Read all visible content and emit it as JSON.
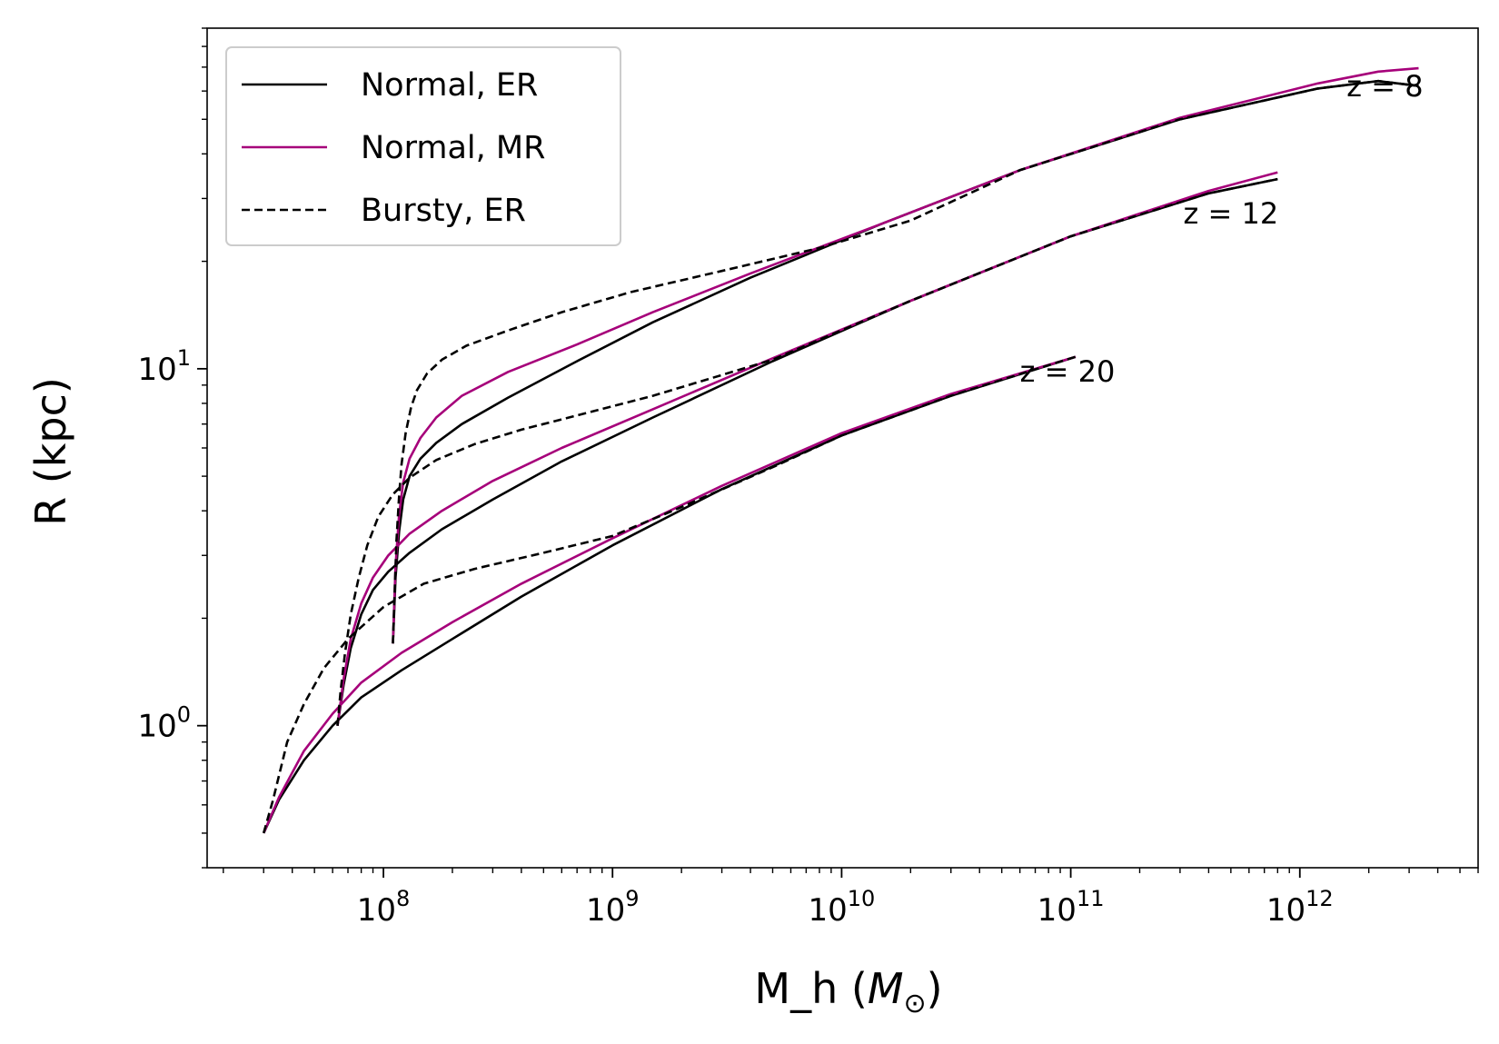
{
  "chart_data": {
    "type": "line",
    "title": "",
    "xlabel": "M_h (",
    "xlabel_symbol": "M",
    "xlabel_subscript": "⊙",
    "xlabel_close": ")",
    "ylabel": "R (kpc)",
    "xscale": "log",
    "yscale": "log",
    "xlim": [
      17000000,
      6000000000000
    ],
    "ylim": [
      0.4,
      90
    ],
    "x_ticks": [
      {
        "value": 100000000,
        "base": "10",
        "exp": "8"
      },
      {
        "value": 1000000000,
        "base": "10",
        "exp": "9"
      },
      {
        "value": 10000000000,
        "base": "10",
        "exp": "10"
      },
      {
        "value": 100000000000,
        "base": "10",
        "exp": "11"
      },
      {
        "value": 1000000000000,
        "base": "10",
        "exp": "12"
      }
    ],
    "y_ticks": [
      {
        "value": 1,
        "base": "10",
        "exp": "0"
      },
      {
        "value": 10,
        "base": "10",
        "exp": "1"
      }
    ],
    "legend": {
      "position": "top-left",
      "entries": [
        {
          "label": "Normal, ER",
          "color": "#000000",
          "dash": "solid"
        },
        {
          "label": "Normal, MR",
          "color": "#a6007a",
          "dash": "solid"
        },
        {
          "label": "Bursty, ER",
          "color": "#000000",
          "dash": "dashed"
        }
      ]
    },
    "annotations": [
      {
        "text": "z = 8",
        "x": 1600000000000,
        "y": 58
      },
      {
        "text": "z = 12",
        "x": 310000000000,
        "y": 25.5
      },
      {
        "text": "z = 20",
        "x": 60000000000,
        "y": 9.2
      }
    ],
    "series": [
      {
        "name": "Normal, ER (z=20)",
        "color": "#000000",
        "dash": "solid",
        "x": [
          30000000,
          35000000,
          45000000,
          60000000,
          80000000,
          120000000,
          200000000,
          400000000,
          1000000000,
          3000000000,
          10000000000,
          30000000000,
          105000000000
        ],
        "y": [
          0.5,
          0.62,
          0.8,
          1.0,
          1.2,
          1.43,
          1.75,
          2.3,
          3.2,
          4.6,
          6.5,
          8.4,
          10.8
        ]
      },
      {
        "name": "Normal, MR (z=20)",
        "color": "#a6007a",
        "dash": "solid",
        "x": [
          30000000,
          35000000,
          45000000,
          60000000,
          80000000,
          120000000,
          200000000,
          400000000,
          1000000000,
          3000000000,
          10000000000,
          30000000000,
          105000000000
        ],
        "y": [
          0.5,
          0.63,
          0.85,
          1.08,
          1.32,
          1.6,
          1.95,
          2.5,
          3.35,
          4.7,
          6.6,
          8.5,
          10.8
        ]
      },
      {
        "name": "Bursty, ER (z=20)",
        "color": "#000000",
        "dash": "dashed",
        "x": [
          30000000,
          33000000,
          38000000,
          45000000,
          55000000,
          70000000,
          100000000,
          150000000,
          250000000,
          500000000,
          1000000000,
          2000000000,
          5000000000,
          10000000000,
          30000000000,
          105000000000
        ],
        "y": [
          0.5,
          0.62,
          0.9,
          1.15,
          1.45,
          1.75,
          2.15,
          2.5,
          2.75,
          3.05,
          3.4,
          4.1,
          5.3,
          6.5,
          8.4,
          10.8
        ]
      },
      {
        "name": "Normal, ER (z=12)",
        "color": "#000000",
        "dash": "solid",
        "x": [
          63000000,
          67000000,
          72000000,
          80000000,
          90000000,
          105000000,
          130000000,
          180000000,
          300000000,
          600000000,
          1500000000,
          5000000000,
          20000000000,
          100000000000,
          400000000000,
          800000000000
        ],
        "y": [
          1.0,
          1.3,
          1.65,
          2.05,
          2.4,
          2.7,
          3.05,
          3.55,
          4.3,
          5.5,
          7.3,
          10.5,
          15.5,
          23.5,
          31.0,
          34.0
        ]
      },
      {
        "name": "Normal, MR (z=12)",
        "color": "#a6007a",
        "dash": "solid",
        "x": [
          63000000,
          67000000,
          72000000,
          80000000,
          90000000,
          105000000,
          130000000,
          180000000,
          300000000,
          600000000,
          1500000000,
          5000000000,
          20000000000,
          100000000000,
          400000000000,
          800000000000
        ],
        "y": [
          1.0,
          1.35,
          1.75,
          2.2,
          2.6,
          3.0,
          3.45,
          4.0,
          4.85,
          6.0,
          7.7,
          10.7,
          15.5,
          23.5,
          31.5,
          35.5
        ]
      },
      {
        "name": "Bursty, ER (z=12)",
        "color": "#000000",
        "dash": "dashed",
        "x": [
          63000000,
          65000000,
          68000000,
          72000000,
          78000000,
          85000000,
          95000000,
          110000000,
          130000000,
          170000000,
          250000000,
          400000000,
          700000000,
          1500000000,
          5000000000,
          20000000000,
          100000000000,
          400000000000,
          800000000000
        ],
        "y": [
          1.0,
          1.25,
          1.6,
          2.05,
          2.6,
          3.2,
          3.85,
          4.45,
          4.95,
          5.55,
          6.15,
          6.75,
          7.4,
          8.4,
          10.6,
          15.5,
          23.5,
          31.0,
          34.0
        ]
      },
      {
        "name": "Normal, ER (z=8)",
        "color": "#000000",
        "dash": "solid",
        "x": [
          110000000,
          113000000,
          117000000,
          122000000,
          130000000,
          145000000,
          170000000,
          220000000,
          350000000,
          700000000,
          1500000000,
          4000000000,
          15000000000,
          60000000000,
          300000000000,
          1200000000000,
          2200000000000,
          3300000000000
        ],
        "y": [
          1.7,
          2.6,
          3.5,
          4.3,
          5.0,
          5.6,
          6.2,
          7.0,
          8.3,
          10.5,
          13.5,
          18.0,
          25.5,
          36.0,
          50.0,
          61.0,
          64.0,
          62.0
        ]
      },
      {
        "name": "Normal, MR (z=8)",
        "color": "#a6007a",
        "dash": "solid",
        "x": [
          110000000,
          113000000,
          117000000,
          122000000,
          130000000,
          145000000,
          170000000,
          220000000,
          350000000,
          700000000,
          1500000000,
          4000000000,
          15000000000,
          60000000000,
          300000000000,
          1200000000000,
          2200000000000,
          3300000000000
        ],
        "y": [
          1.7,
          2.8,
          3.9,
          4.8,
          5.6,
          6.4,
          7.3,
          8.4,
          9.8,
          11.7,
          14.4,
          18.5,
          25.5,
          36.0,
          50.5,
          63.0,
          68.0,
          69.5
        ]
      },
      {
        "name": "Bursty, ER (z=8)",
        "color": "#000000",
        "dash": "dashed",
        "x": [
          110000000,
          112000000,
          114000000,
          117000000,
          120000000,
          125000000,
          132000000,
          140000000,
          155000000,
          180000000,
          230000000,
          350000000,
          600000000,
          1200000000,
          3000000000,
          8000000000,
          20000000000,
          60000000000,
          300000000000,
          1200000000000,
          2200000000000,
          3300000000000
        ],
        "y": [
          1.7,
          2.4,
          3.3,
          4.4,
          5.4,
          6.6,
          7.8,
          8.7,
          9.7,
          10.6,
          11.6,
          12.8,
          14.4,
          16.4,
          18.8,
          21.8,
          26.0,
          36.0,
          50.0,
          61.0,
          64.0,
          62.0
        ]
      }
    ]
  }
}
